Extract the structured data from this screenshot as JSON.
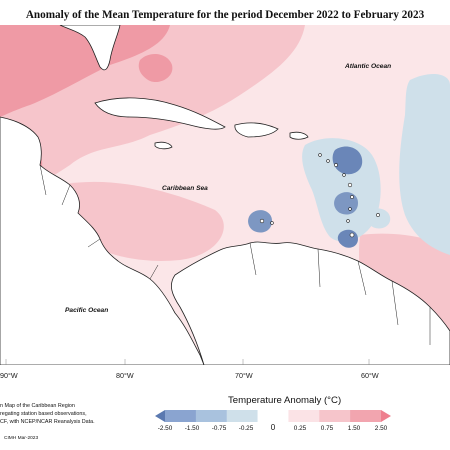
{
  "title": "Anomaly of the Mean Temperature for the period December 2022 to February 2023",
  "ocean_labels": {
    "atlantic": "Atlantic Ocean",
    "caribbean": "Caribbean Sea",
    "pacific": "Pacific Ocean"
  },
  "longitude_ticks": [
    "90°W",
    "80°W",
    "70°W",
    "60°W"
  ],
  "credits": {
    "line1": "n Map of the Caribbean Region",
    "line2": "regating station based observations,",
    "line3": "CF, with NCEP/NCAR Reanalysis Data.",
    "footer": "CIMH Mar-2023"
  },
  "legend": {
    "title": "Temperature Anomaly (°C)",
    "labels": [
      "-2.50",
      "-1.50",
      "-0.75",
      "-0.25",
      "0",
      "0.25",
      "0.75",
      "1.50",
      "2.50"
    ],
    "colors": [
      "#5b79b0",
      "#8aa4d0",
      "#a9c2de",
      "#cfe0ea",
      "#ffffff",
      "#fbe3e6",
      "#f6c5cb",
      "#f2a5af",
      "#ee7f8e"
    ]
  },
  "palette": {
    "land": "#ffffff",
    "light_pink": "#fbe6e8",
    "medium_pink": "#f6c5cb",
    "deep_pink": "#ef9aa5",
    "light_blue": "#cfe0ea",
    "medium_blue": "#a9c2de",
    "deep_blue": "#6a86b8"
  }
}
